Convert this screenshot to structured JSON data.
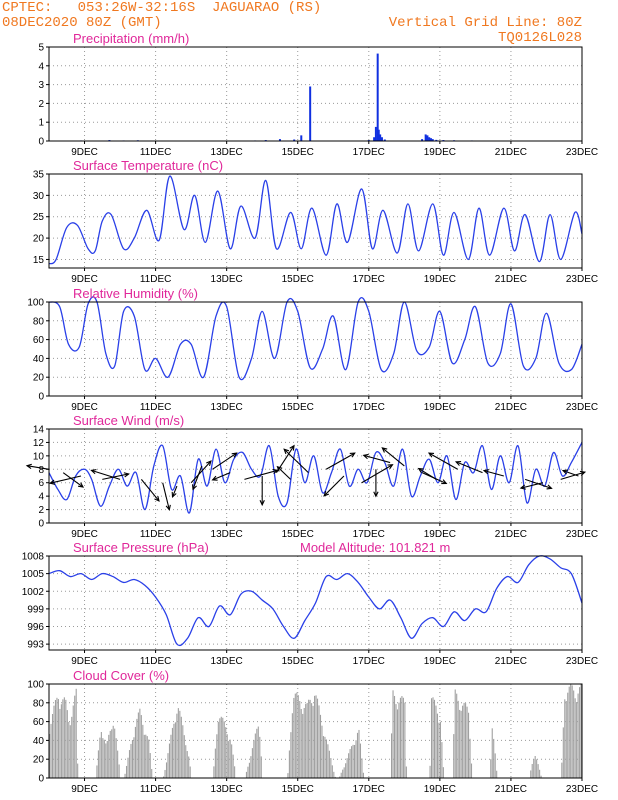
{
  "header": {
    "line1_left": "CPTEC:   053:26W-32:16S  JAGUARAO (RS)",
    "line2_left": "08DEC2020 80Z (GMT)",
    "line1_right": "Vertical Grid Line: 80Z",
    "line2_right": "TQ0126L028"
  },
  "colors": {
    "header_text": "#f07820",
    "panel_title": "#e0289a",
    "series_line": "#2a40e8",
    "precip_bar": "#1030e0",
    "cloud_bar": "#a0a0a0",
    "wind_arrow": "#000000",
    "frame": "#000000"
  },
  "x_axis": {
    "tick_labels": [
      "9DEC",
      "11DEC",
      "13DEC",
      "15DEC",
      "17DEC",
      "19DEC",
      "21DEC",
      "23DEC"
    ],
    "tick_positions": [
      1,
      3,
      5,
      7,
      9,
      11,
      13,
      15
    ],
    "range": [
      0,
      15
    ]
  },
  "chart_data": [
    {
      "id": "precip",
      "type": "bar",
      "title": "Precipitation (mm/h)",
      "ylim": [
        0,
        5
      ],
      "yticks": [
        0,
        1,
        2,
        3,
        4,
        5
      ],
      "grid": "dotted",
      "x_units": "days after 08DEC2020 00Z",
      "series": [
        {
          "x": [
            0.5,
            0.9,
            1.3,
            1.7,
            2.1,
            2.5,
            3.0,
            5.8,
            6.1,
            6.5,
            6.9,
            7.1,
            7.35,
            9.0,
            9.15,
            9.2,
            9.25,
            9.28,
            9.32,
            9.37,
            9.45,
            10.5,
            10.6,
            10.65,
            10.7,
            10.75,
            10.8,
            10.9,
            11.1,
            11.4,
            11.9,
            12.6
          ],
          "y": [
            0.02,
            0.03,
            0.02,
            0.05,
            0.03,
            0.04,
            0.02,
            0.03,
            0.05,
            0.1,
            0.08,
            0.3,
            2.9,
            0.05,
            0.2,
            0.75,
            4.65,
            0.6,
            0.35,
            0.2,
            0.08,
            0.1,
            0.35,
            0.3,
            0.2,
            0.15,
            0.1,
            0.06,
            0.05,
            0.04,
            0.03,
            0.02
          ]
        }
      ]
    },
    {
      "id": "temp",
      "type": "line",
      "title": "Surface Temperature (nC)",
      "ylim": [
        13,
        35
      ],
      "yticks": [
        15,
        20,
        25,
        30,
        35
      ],
      "grid": "dotted",
      "series": [
        {
          "x": [
            0.0,
            0.2,
            0.5,
            0.8,
            1.1,
            1.3,
            1.5,
            1.75,
            2.1,
            2.4,
            2.75,
            3.1,
            3.4,
            3.8,
            4.1,
            4.4,
            4.75,
            5.1,
            5.4,
            5.8,
            6.1,
            6.4,
            6.8,
            7.1,
            7.4,
            7.8,
            8.1,
            8.4,
            8.8,
            9.1,
            9.4,
            9.8,
            10.1,
            10.4,
            10.8,
            11.1,
            11.4,
            11.8,
            12.1,
            12.4,
            12.8,
            13.1,
            13.4,
            13.8,
            14.1,
            14.4,
            14.8,
            15.0
          ],
          "y": [
            14.0,
            15.0,
            22.5,
            23.0,
            17.5,
            17.0,
            24.0,
            25.5,
            17.5,
            20.0,
            26.5,
            19.5,
            34.5,
            22.0,
            30.0,
            19.0,
            31.0,
            17.5,
            27.5,
            20.0,
            33.5,
            17.5,
            26.0,
            17.5,
            27.0,
            16.0,
            28.0,
            19.0,
            31.5,
            17.5,
            26.5,
            16.5,
            28.0,
            17.0,
            28.0,
            16.0,
            26.0,
            15.0,
            27.0,
            16.0,
            27.0,
            17.0,
            25.5,
            14.5,
            25.5,
            15.0,
            26.0,
            21.0
          ]
        }
      ]
    },
    {
      "id": "rh",
      "type": "line",
      "title": "Relative Humidity (%)",
      "ylim": [
        0,
        100
      ],
      "yticks": [
        0,
        20,
        40,
        60,
        80,
        100
      ],
      "grid": "dotted",
      "series": [
        {
          "x": [
            0.0,
            0.3,
            0.55,
            0.85,
            1.1,
            1.35,
            1.6,
            1.85,
            2.1,
            2.4,
            2.7,
            3.0,
            3.35,
            3.7,
            4.0,
            4.35,
            4.7,
            5.0,
            5.35,
            5.7,
            6.0,
            6.35,
            6.7,
            7.0,
            7.35,
            7.7,
            8.0,
            8.35,
            8.7,
            9.0,
            9.35,
            9.7,
            10.0,
            10.35,
            10.7,
            11.0,
            11.35,
            11.7,
            12.0,
            12.35,
            12.7,
            13.0,
            13.35,
            13.7,
            14.0,
            14.35,
            14.7,
            15.0
          ],
          "y": [
            100,
            95,
            55,
            52,
            98,
            100,
            45,
            32,
            90,
            85,
            28,
            40,
            20,
            55,
            55,
            20,
            85,
            95,
            20,
            40,
            90,
            40,
            100,
            90,
            30,
            50,
            85,
            28,
            100,
            90,
            28,
            45,
            100,
            48,
            52,
            90,
            35,
            60,
            95,
            35,
            45,
            98,
            32,
            40,
            88,
            35,
            28,
            55
          ]
        }
      ]
    },
    {
      "id": "wind",
      "type": "line",
      "title": "Surface Wind (m/s)",
      "ylim": [
        0,
        14
      ],
      "yticks": [
        0,
        2,
        4,
        6,
        8,
        10,
        12,
        14
      ],
      "grid": "dotted",
      "series": [
        {
          "x": [
            0.0,
            0.25,
            0.5,
            0.75,
            1.0,
            1.2,
            1.45,
            1.7,
            1.95,
            2.2,
            2.45,
            2.7,
            2.95,
            3.2,
            3.45,
            3.7,
            3.95,
            4.2,
            4.45,
            4.7,
            4.95,
            5.2,
            5.45,
            5.7,
            5.95,
            6.2,
            6.45,
            6.7,
            6.95,
            7.2,
            7.45,
            7.7,
            7.95,
            8.2,
            8.45,
            8.7,
            8.95,
            9.2,
            9.45,
            9.7,
            9.95,
            10.2,
            10.45,
            10.7,
            10.95,
            11.2,
            11.45,
            11.7,
            11.95,
            12.2,
            12.45,
            12.7,
            12.95,
            13.2,
            13.45,
            13.7,
            13.95,
            14.2,
            14.45,
            14.7,
            15.0
          ],
          "y": [
            7.5,
            5.0,
            3.5,
            7.0,
            8.0,
            6.5,
            2.5,
            5.5,
            8.0,
            5.5,
            7.5,
            2.0,
            8.5,
            11.5,
            5.0,
            7.0,
            1.5,
            9.5,
            5.5,
            11.0,
            6.0,
            9.5,
            10.5,
            8.0,
            7.0,
            11.5,
            4.0,
            3.0,
            11.0,
            6.0,
            10.0,
            4.5,
            7.5,
            11.0,
            5.5,
            8.0,
            6.0,
            10.5,
            9.0,
            5.5,
            11.0,
            4.0,
            7.0,
            9.5,
            6.0,
            10.0,
            3.5,
            9.0,
            7.5,
            11.5,
            5.0,
            10.0,
            6.0,
            11.5,
            3.0,
            8.0,
            5.5,
            10.5,
            7.0,
            9.0,
            12.0
          ]
        }
      ],
      "arrows": {
        "x": [
          0.0,
          0.4,
          0.9,
          1.5,
          2.0,
          2.6,
          3.2,
          3.6,
          4.0,
          4.3,
          4.6,
          5.1,
          5.5,
          6.0,
          6.4,
          6.8,
          7.3,
          7.8,
          8.3,
          8.8,
          9.2,
          9.6,
          10.0,
          10.5,
          10.9,
          11.5,
          12.2,
          12.8,
          13.4,
          13.9,
          14.4,
          14.9
        ],
        "y": [
          8.0,
          7.5,
          7.0,
          6.5,
          6.5,
          6.5,
          6.0,
          5.5,
          6.0,
          8.5,
          8.0,
          7.5,
          6.5,
          7.0,
          7.5,
          6.5,
          7.5,
          8.0,
          7.0,
          6.0,
          8.0,
          9.0,
          8.5,
          7.5,
          6.5,
          8.0,
          7.5,
          7.0,
          6.5,
          6.0,
          6.5,
          7.0
        ],
        "u": [
          -1.0,
          0.9,
          -1.4,
          1.2,
          -1.3,
          0.8,
          0.3,
          -0.2,
          0.9,
          -0.4,
          1.1,
          -0.8,
          1.5,
          0.0,
          0.8,
          -0.6,
          -1.1,
          1.3,
          -0.9,
          1.4,
          0.0,
          -1.2,
          -1.0,
          1.1,
          -0.8,
          -1.3,
          -1.2,
          -0.9,
          1.2,
          -1.0,
          1.1,
          -0.7
        ],
        "v": [
          0.2,
          -0.8,
          -0.4,
          0.3,
          0.5,
          -1.2,
          -1.5,
          -0.6,
          1.2,
          -1.3,
          0.9,
          -0.4,
          0.5,
          -1.6,
          1.5,
          0.7,
          1.3,
          0.9,
          -1.1,
          1.0,
          -1.5,
          0.4,
          1.0,
          -0.6,
          0.6,
          0.9,
          0.6,
          0.3,
          -0.5,
          -0.3,
          0.4,
          0.3
        ]
      }
    },
    {
      "id": "pressure",
      "type": "line",
      "title": "Surface Pressure (hPa)",
      "annotation": "Model Altitude: 101.821 m",
      "ylim": [
        992,
        1008
      ],
      "yticks": [
        993,
        996,
        999,
        1002,
        1005,
        1008
      ],
      "grid": "dotted",
      "series": [
        {
          "x": [
            0.0,
            0.3,
            0.6,
            0.9,
            1.2,
            1.5,
            1.8,
            2.1,
            2.4,
            2.7,
            3.0,
            3.3,
            3.6,
            3.9,
            4.2,
            4.5,
            4.8,
            5.1,
            5.4,
            5.7,
            6.0,
            6.3,
            6.6,
            6.9,
            7.2,
            7.5,
            7.8,
            8.1,
            8.4,
            8.7,
            9.0,
            9.3,
            9.6,
            9.9,
            10.2,
            10.5,
            10.8,
            11.1,
            11.4,
            11.7,
            12.0,
            12.3,
            12.6,
            12.9,
            13.2,
            13.5,
            13.8,
            14.1,
            14.4,
            14.7,
            15.0
          ],
          "y": [
            1005.0,
            1005.5,
            1004.5,
            1005.0,
            1004.0,
            1005.0,
            1004.5,
            1003.5,
            1004.0,
            1003.0,
            1001.0,
            998.0,
            993.0,
            994.0,
            997.5,
            996.0,
            999.5,
            998.0,
            1001.5,
            1002.0,
            1000.5,
            999.0,
            996.0,
            994.0,
            997.0,
            1000.0,
            1004.5,
            1004.0,
            1005.0,
            1003.5,
            1001.0,
            999.0,
            1000.5,
            997.5,
            994.0,
            996.5,
            997.5,
            996.0,
            998.5,
            997.0,
            999.0,
            998.5,
            1002.5,
            1004.5,
            1003.5,
            1006.5,
            1008.0,
            1007.5,
            1006.0,
            1005.0,
            1000.0
          ]
        }
      ]
    },
    {
      "id": "cloud",
      "type": "bar",
      "title": "Cloud Cover (%)",
      "ylim": [
        0,
        100
      ],
      "yticks": [
        0,
        20,
        40,
        60,
        80,
        100
      ],
      "grid": "dotted",
      "profile_x": [
        0.0,
        0.25,
        0.45,
        0.55,
        0.75,
        0.8,
        1.3,
        1.45,
        1.6,
        1.8,
        2.0,
        2.1,
        2.4,
        2.55,
        2.8,
        2.9,
        3.2,
        3.6,
        3.9,
        4.0,
        4.6,
        4.75,
        5.1,
        5.25,
        5.5,
        5.9,
        6.0,
        6.7,
        6.85,
        7.25,
        7.45,
        8.05,
        8.15,
        8.7,
        8.85,
        9.6,
        9.65,
        10.0,
        10.05,
        10.7,
        10.75,
        11.0,
        11.1,
        11.35,
        11.4,
        11.8,
        11.9,
        12.4,
        12.45,
        12.6,
        12.8,
        12.9,
        13.5,
        13.65,
        13.85,
        14.0,
        14.4,
        14.5,
        15.0
      ],
      "profile_y": [
        60,
        95,
        85,
        65,
        95,
        0,
        0,
        60,
        35,
        70,
        0,
        0,
        60,
        75,
        40,
        0,
        0,
        85,
        30,
        0,
        0,
        75,
        45,
        0,
        0,
        65,
        0,
        0,
        95,
        80,
        100,
        0,
        0,
        55,
        0,
        0,
        95,
        85,
        0,
        0,
        90,
        70,
        0,
        0,
        95,
        75,
        0,
        0,
        70,
        0,
        0,
        0,
        0,
        30,
        0,
        0,
        0,
        100,
        100
      ]
    }
  ]
}
